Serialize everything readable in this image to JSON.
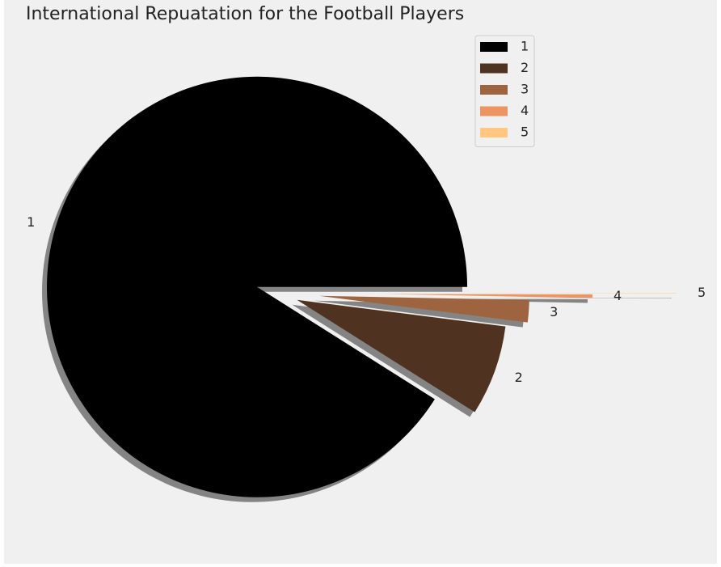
{
  "chart_data": {
    "type": "pie",
    "title": "International Repuatation for the Football Players",
    "categories": [
      "1",
      "2",
      "3",
      "4",
      "5"
    ],
    "values": [
      16532,
      1261,
      309,
      51,
      6
    ],
    "colors": [
      "#000000",
      "#4f3220",
      "#9e6440",
      "#ec9560",
      "#ffc77f"
    ],
    "legend": "upper right"
  }
}
